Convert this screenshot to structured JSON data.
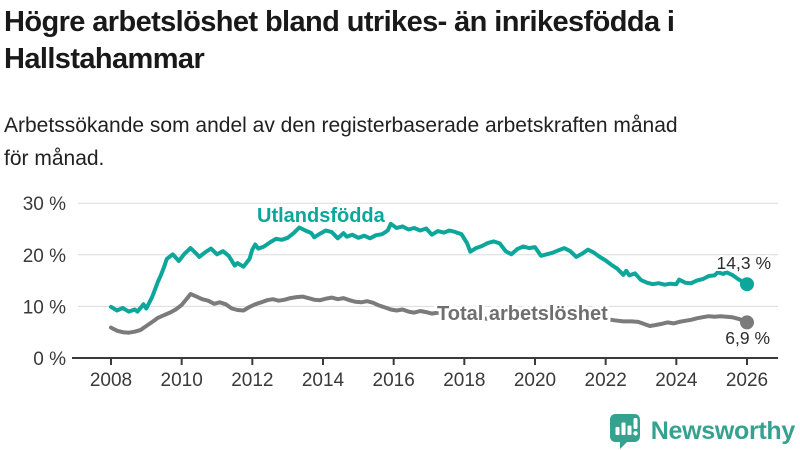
{
  "header": {
    "title_lines": [
      "Högre arbetslöshet bland utrikes- än inrikesfödda i",
      "Hallstahammar"
    ],
    "subtitle_lines": [
      "Arbetssökande som andel av den registerbaserade arbetskraften månad",
      "för månad."
    ]
  },
  "chart_data": {
    "type": "line",
    "title": "Högre arbetslöshet bland utrikes- än inrikesfödda i Hallstahammar",
    "subtitle": "Arbetssökande som andel av den registerbaserade arbetskraften månad för månad.",
    "xlabel": "",
    "ylabel": "",
    "xlim": [
      2008,
      2026
    ],
    "ylim": [
      0,
      30
    ],
    "grid": true,
    "grid_color": "#dcdcdc",
    "axis_color": "#3a3a3a",
    "x_ticks": [
      2008,
      2010,
      2012,
      2014,
      2016,
      2018,
      2020,
      2022,
      2024,
      2026
    ],
    "y_ticks": [
      {
        "label": "0 %",
        "value": 0
      },
      {
        "label": "10 %",
        "value": 10
      },
      {
        "label": "20 %",
        "value": 20
      },
      {
        "label": "30 %",
        "value": 30
      }
    ],
    "legend_position": "inline-labels",
    "series": [
      {
        "name": "Utlandsfödda",
        "color": "#0ca69b",
        "end_label": "14,3 %",
        "end_value": 14.3,
        "x": [
          2008.0,
          2008.17,
          2008.33,
          2008.5,
          2008.67,
          2008.75,
          2008.92,
          2009.0,
          2009.17,
          2009.33,
          2009.42,
          2009.5,
          2009.58,
          2009.75,
          2009.92,
          2010.08,
          2010.25,
          2010.42,
          2010.5,
          2010.67,
          2010.83,
          2011.0,
          2011.17,
          2011.33,
          2011.5,
          2011.58,
          2011.75,
          2011.92,
          2012.0,
          2012.08,
          2012.17,
          2012.33,
          2012.5,
          2012.67,
          2012.83,
          2013.0,
          2013.17,
          2013.33,
          2013.5,
          2013.67,
          2013.75,
          2013.92,
          2014.08,
          2014.25,
          2014.42,
          2014.58,
          2014.67,
          2014.83,
          2015.0,
          2015.17,
          2015.33,
          2015.5,
          2015.67,
          2015.83,
          2015.92,
          2016.08,
          2016.25,
          2016.42,
          2016.58,
          2016.75,
          2016.92,
          2017.08,
          2017.25,
          2017.42,
          2017.58,
          2017.75,
          2017.92,
          2018.08,
          2018.17,
          2018.33,
          2018.5,
          2018.67,
          2018.83,
          2019.0,
          2019.17,
          2019.33,
          2019.5,
          2019.67,
          2019.83,
          2020.0,
          2020.17,
          2020.33,
          2020.5,
          2020.67,
          2020.83,
          2021.0,
          2021.17,
          2021.33,
          2021.5,
          2021.67,
          2021.83,
          2022.0,
          2022.17,
          2022.33,
          2022.5,
          2022.58,
          2022.67,
          2022.83,
          2023.0,
          2023.17,
          2023.33,
          2023.5,
          2023.67,
          2023.83,
          2024.0,
          2024.08,
          2024.25,
          2024.42,
          2024.58,
          2024.75,
          2024.92,
          2025.08,
          2025.17,
          2025.33,
          2025.42,
          2025.58,
          2025.75,
          2025.92,
          2026.0
        ],
        "y": [
          9.9,
          9.2,
          9.7,
          9.0,
          9.4,
          9.0,
          10.4,
          9.6,
          11.9,
          14.8,
          16.2,
          17.6,
          19.2,
          20.1,
          18.8,
          20.2,
          21.3,
          20.2,
          19.6,
          20.5,
          21.2,
          20.1,
          20.7,
          19.8,
          17.9,
          18.4,
          17.7,
          19.2,
          21.0,
          22.0,
          21.2,
          21.6,
          22.4,
          23.1,
          22.9,
          23.3,
          24.2,
          25.3,
          24.7,
          24.2,
          23.4,
          24.1,
          24.7,
          24.4,
          23.2,
          24.2,
          23.5,
          23.9,
          23.3,
          23.7,
          23.2,
          23.8,
          24.0,
          24.7,
          26.0,
          25.2,
          25.5,
          24.9,
          25.2,
          24.7,
          25.1,
          23.9,
          24.6,
          24.3,
          24.7,
          24.4,
          24.0,
          22.2,
          20.6,
          21.3,
          21.7,
          22.3,
          22.6,
          22.2,
          20.7,
          20.1,
          21.1,
          21.6,
          21.3,
          21.5,
          19.8,
          20.1,
          20.4,
          20.9,
          21.3,
          20.7,
          19.6,
          20.2,
          21.0,
          20.4,
          19.6,
          18.9,
          18.0,
          17.3,
          16.1,
          16.9,
          16.0,
          16.4,
          15.1,
          14.6,
          14.3,
          14.5,
          14.2,
          14.4,
          14.3,
          15.2,
          14.6,
          14.5,
          15.0,
          15.3,
          15.9,
          16.0,
          16.6,
          16.3,
          16.6,
          16.1,
          15.3,
          14.6,
          14.3
        ]
      },
      {
        "name": "Total arbetslöshet",
        "color": "#7b7b7b",
        "end_label": "6,9 %",
        "end_value": 6.9,
        "x": [
          2008.0,
          2008.17,
          2008.33,
          2008.5,
          2008.67,
          2008.83,
          2009.0,
          2009.17,
          2009.33,
          2009.5,
          2009.67,
          2009.83,
          2010.0,
          2010.17,
          2010.25,
          2010.42,
          2010.58,
          2010.75,
          2010.92,
          2011.08,
          2011.25,
          2011.42,
          2011.58,
          2011.75,
          2011.92,
          2012.08,
          2012.25,
          2012.42,
          2012.58,
          2012.75,
          2012.92,
          2013.08,
          2013.25,
          2013.42,
          2013.58,
          2013.75,
          2013.92,
          2014.08,
          2014.25,
          2014.42,
          2014.58,
          2014.75,
          2014.92,
          2015.08,
          2015.25,
          2015.42,
          2015.58,
          2015.75,
          2015.92,
          2016.08,
          2016.25,
          2016.42,
          2016.58,
          2016.75,
          2016.92,
          2017.08,
          2017.25,
          2017.42,
          2017.58,
          2017.75,
          2017.92,
          2018.17,
          2018.42,
          2018.67,
          2018.92,
          2019.17,
          2019.42,
          2019.67,
          2019.92,
          2020.17,
          2020.33,
          2020.5,
          2020.67,
          2020.83,
          2021.0,
          2021.25,
          2021.5,
          2021.75,
          2022.0,
          2022.25,
          2022.5,
          2022.75,
          2022.92,
          2023.08,
          2023.25,
          2023.42,
          2023.58,
          2023.75,
          2023.92,
          2024.08,
          2024.25,
          2024.42,
          2024.58,
          2024.75,
          2024.92,
          2025.08,
          2025.25,
          2025.42,
          2025.58,
          2025.75,
          2025.92,
          2026.0
        ],
        "y": [
          5.9,
          5.3,
          5.0,
          4.9,
          5.1,
          5.4,
          6.2,
          7.0,
          7.8,
          8.3,
          8.8,
          9.4,
          10.3,
          11.7,
          12.4,
          11.9,
          11.4,
          11.1,
          10.5,
          10.8,
          10.4,
          9.6,
          9.3,
          9.2,
          9.9,
          10.4,
          10.8,
          11.2,
          11.4,
          11.1,
          11.3,
          11.6,
          11.8,
          11.9,
          11.6,
          11.3,
          11.2,
          11.5,
          11.7,
          11.4,
          11.6,
          11.2,
          10.9,
          10.8,
          11.0,
          10.7,
          10.2,
          9.8,
          9.4,
          9.2,
          9.4,
          9.0,
          8.8,
          9.1,
          8.9,
          8.6,
          8.8,
          8.4,
          8.2,
          8.1,
          8.0,
          7.9,
          7.7,
          7.6,
          7.7,
          7.6,
          7.5,
          7.6,
          7.8,
          8.3,
          8.7,
          8.9,
          8.8,
          8.7,
          8.5,
          8.2,
          8.0,
          7.8,
          7.6,
          7.3,
          7.1,
          7.1,
          7.0,
          6.6,
          6.2,
          6.4,
          6.6,
          6.9,
          6.7,
          7.0,
          7.2,
          7.4,
          7.7,
          7.9,
          8.1,
          8.0,
          8.1,
          8.0,
          7.9,
          7.6,
          7.2,
          6.9
        ]
      }
    ]
  },
  "branding": {
    "logo_text": "Newsworthy",
    "logo_color": "#35a28f",
    "logo_icon": "bar-chart-speech-bubble-icon"
  }
}
